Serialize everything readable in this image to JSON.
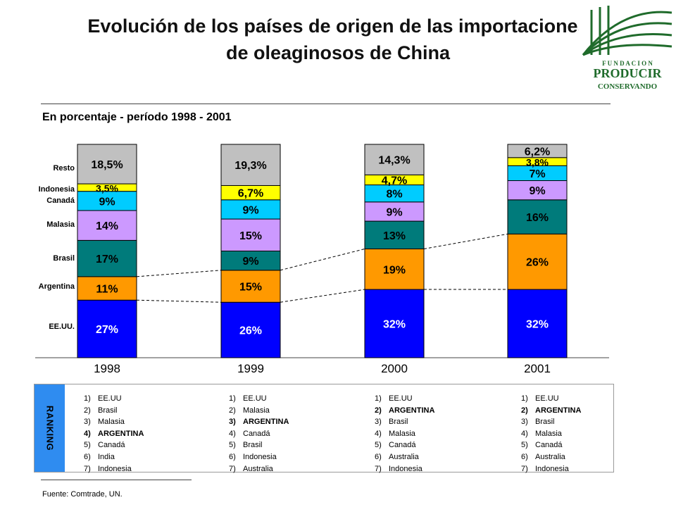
{
  "title": "Evolución de los países de origen de las importaciones de oleaginosos de China",
  "subtitle": "En porcentaje - período 1998 - 2001",
  "logo": {
    "line1": "F U N D A C I O N",
    "line2": "PRODUCIR",
    "line3": "CONSERVANDO",
    "color": "#1f6b2b"
  },
  "chart_data": {
    "type": "bar",
    "stacked": true,
    "title": "En porcentaje - período 1998 - 2001",
    "categories": [
      "1998",
      "1999",
      "2000",
      "2001"
    ],
    "series": [
      {
        "name": "EE.UU.",
        "color": "#0000ff",
        "text_color": "#ffffff",
        "values": [
          27,
          26,
          32,
          32
        ],
        "labels": [
          "27%",
          "26%",
          "32%",
          "32%"
        ]
      },
      {
        "name": "Argentina",
        "color": "#ff9900",
        "text_color": "#000000",
        "values": [
          11,
          15,
          19,
          26
        ],
        "labels": [
          "11%",
          "15%",
          "19%",
          "26%"
        ]
      },
      {
        "name": "Brasil",
        "color": "#007b7b",
        "text_color": "#000000",
        "values": [
          17,
          9,
          13,
          16
        ],
        "labels": [
          "17%",
          "9%",
          "13%",
          "16%"
        ]
      },
      {
        "name": "Malasia",
        "color": "#cc99ff",
        "text_color": "#000000",
        "values": [
          14,
          15,
          9,
          9
        ],
        "labels": [
          "14%",
          "15%",
          "9%",
          "9%"
        ]
      },
      {
        "name": "Canadá",
        "color": "#00ccff",
        "text_color": "#000000",
        "values": [
          9,
          9,
          8,
          7
        ],
        "labels": [
          "9%",
          "9%",
          "8%",
          "7%"
        ]
      },
      {
        "name": "Indonesia",
        "color": "#ffff00",
        "text_color": "#000000",
        "values": [
          3.5,
          6.7,
          4.7,
          3.8
        ],
        "labels": [
          "3,5%",
          "6,7%",
          "4,7%",
          "3,8%"
        ]
      },
      {
        "name": "Resto",
        "color": "#c0c0c0",
        "text_color": "#000000",
        "values": [
          18.5,
          19.3,
          14.3,
          6.2
        ],
        "labels": [
          "18,5%",
          "19,3%",
          "14,3%",
          "6,2%"
        ]
      }
    ],
    "legend_labels": [
      "EE.UU.",
      "Argentina",
      "Brasil",
      "Malasia",
      "Canadá",
      "Indonesia",
      "Resto"
    ],
    "ylim": [
      0,
      100
    ],
    "grid": false,
    "annotations": "dashed connector lines between bars at the top of the EE.UU. and Argentina segments"
  },
  "ranking": {
    "label": "RANKING",
    "columns": [
      {
        "year": "1998",
        "items": [
          {
            "n": "1)",
            "name": "EE.UU",
            "bold": false
          },
          {
            "n": "2)",
            "name": "Brasil",
            "bold": false
          },
          {
            "n": "3)",
            "name": "Malasia",
            "bold": false
          },
          {
            "n": "4)",
            "name": "ARGENTINA",
            "bold": true
          },
          {
            "n": "5)",
            "name": "Canadá",
            "bold": false
          },
          {
            "n": "6)",
            "name": "India",
            "bold": false
          },
          {
            "n": "7)",
            "name": "Indonesia",
            "bold": false
          }
        ]
      },
      {
        "year": "1999",
        "items": [
          {
            "n": "1)",
            "name": "EE.UU",
            "bold": false
          },
          {
            "n": "2)",
            "name": "Malasia",
            "bold": false
          },
          {
            "n": "3)",
            "name": "ARGENTINA",
            "bold": true
          },
          {
            "n": "4)",
            "name": "Canadá",
            "bold": false
          },
          {
            "n": "5)",
            "name": "Brasil",
            "bold": false
          },
          {
            "n": "6)",
            "name": "Indonesia",
            "bold": false
          },
          {
            "n": "7)",
            "name": "Australia",
            "bold": false
          }
        ]
      },
      {
        "year": "2000",
        "items": [
          {
            "n": "1)",
            "name": "EE.UU",
            "bold": false
          },
          {
            "n": "2)",
            "name": "ARGENTINA",
            "bold": true
          },
          {
            "n": "3)",
            "name": "Brasil",
            "bold": false
          },
          {
            "n": "4)",
            "name": "Malasia",
            "bold": false
          },
          {
            "n": "5)",
            "name": "Canadá",
            "bold": false
          },
          {
            "n": "6)",
            "name": "Australia",
            "bold": false
          },
          {
            "n": "7)",
            "name": "Indonesia",
            "bold": false
          }
        ]
      },
      {
        "year": "2001",
        "items": [
          {
            "n": "1)",
            "name": "EE.UU",
            "bold": false
          },
          {
            "n": "2)",
            "name": "ARGENTINA",
            "bold": true
          },
          {
            "n": "3)",
            "name": "Brasil",
            "bold": false
          },
          {
            "n": "4)",
            "name": "Malasia",
            "bold": false
          },
          {
            "n": "5)",
            "name": "Canadá",
            "bold": false
          },
          {
            "n": "6)",
            "name": "Australia",
            "bold": false
          },
          {
            "n": "7)",
            "name": "Indonesia",
            "bold": false
          }
        ]
      }
    ]
  },
  "source": "Fuente: Comtrade, UN."
}
